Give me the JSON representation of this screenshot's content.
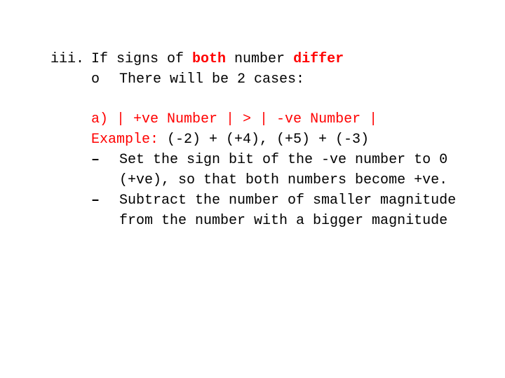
{
  "colors": {
    "text": "#000000",
    "accent": "#ff0000",
    "background": "#ffffff"
  },
  "typography": {
    "font_family": "Courier New",
    "font_size_pt": 15,
    "line_height": 1.45
  },
  "outline": {
    "marker_iii": "iii.",
    "title_pre": "If signs of ",
    "title_both": "both",
    "title_mid": " number ",
    "title_differ": "differ",
    "circle_marker": "o",
    "circle_text": "There will be 2 cases:",
    "case_a_label": "a)",
    "case_a_cond": " | +ve Number | > | -ve Number |",
    "example_label": "Example:",
    "example_rest": " (-2) + (+4), (+5) + (-3)",
    "dash": "–",
    "step1": "Set the sign bit of the -ve number to  0 (+ve), so that both numbers become +ve.",
    "step2": "Subtract the number of smaller magnitude from the number with a bigger magnitude"
  }
}
